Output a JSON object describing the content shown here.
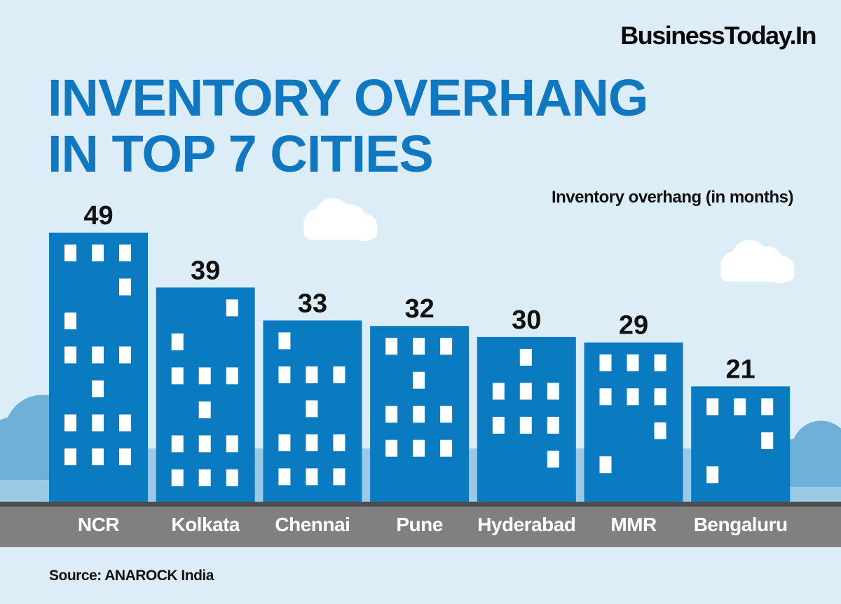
{
  "brand": "BusinessToday.In",
  "title_line1": "INVENTORY OVERHANG",
  "title_line2": "IN TOP 7 CITIES",
  "source": "Source: ANAROCK India",
  "colors": {
    "background": "#dcedf7",
    "bar": "#0a7bc1",
    "title": "#0f78c0",
    "road": "#808080",
    "road_edge": "#4d4d4d",
    "cloud_dark": "#6fb0d8",
    "cloud_light": "#ffffff"
  },
  "chart_data": {
    "type": "bar",
    "title": "INVENTORY OVERHANG IN TOP 7 CITIES",
    "ylabel": "Inventory overhang (in months)",
    "categories": [
      "NCR",
      "Kolkata",
      "Chennai",
      "Pune",
      "Hyderabad",
      "MMR",
      "Bengaluru"
    ],
    "values": [
      49,
      39,
      33,
      32,
      30,
      29,
      21
    ],
    "ylim": [
      0,
      49
    ],
    "grid": false
  }
}
